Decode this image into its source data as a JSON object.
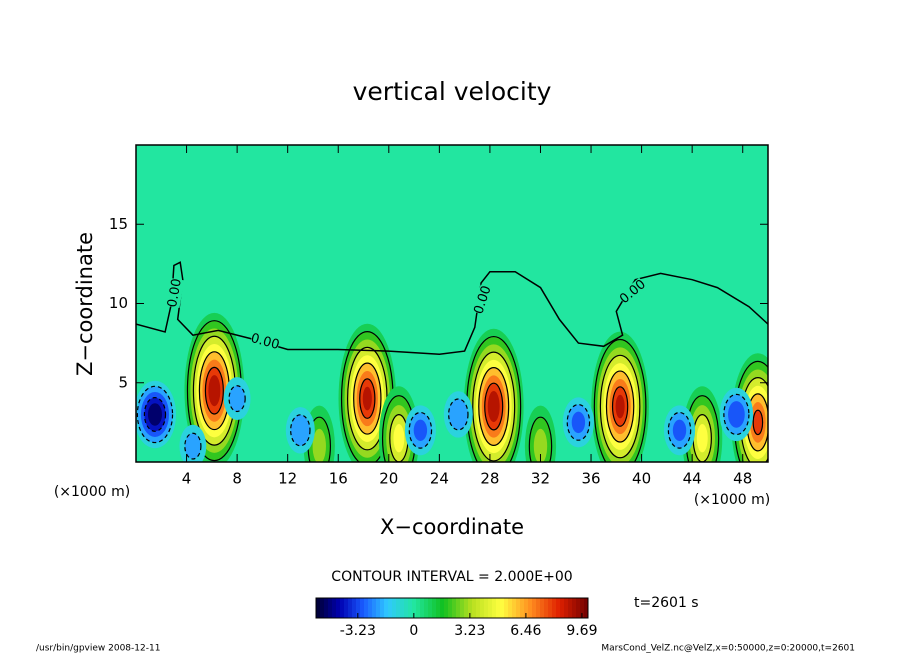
{
  "chart_data": {
    "type": "contour",
    "title": "vertical velocity",
    "x_label": "X−coordinate",
    "y_label": "Z−coordinate",
    "x_unit": "(×1000 m)",
    "xlim": [
      0,
      50
    ],
    "ylim": [
      0,
      20
    ],
    "xticks": [
      4,
      8,
      12,
      16,
      20,
      24,
      28,
      32,
      36,
      40,
      44,
      48
    ],
    "yticks": [
      5,
      10,
      15
    ],
    "background_color": "#22e6a0",
    "zero_contour": {
      "label": "0.00",
      "x": [
        0,
        2.3,
        2.8,
        3.0,
        3.5,
        3.7,
        3.3,
        4.5,
        6.5,
        9,
        12,
        16,
        20,
        24,
        26,
        26.8,
        27.3,
        28,
        30,
        32,
        33.5,
        35,
        37,
        38.5,
        38,
        39.5,
        41.5,
        44,
        46,
        48.5,
        50
      ],
      "y": [
        8.7,
        8.2,
        10,
        12.4,
        12.6,
        11.5,
        9,
        8.0,
        8.3,
        7.8,
        7.1,
        7.1,
        7.0,
        6.8,
        7.0,
        8.5,
        11.3,
        12,
        12,
        11,
        9,
        7.5,
        7.3,
        8,
        9.5,
        11.5,
        11.9,
        11.5,
        11,
        9.8,
        8.7
      ]
    },
    "cells": [
      {
        "x": 6.2,
        "y": 4.5,
        "value": 9.5
      },
      {
        "x": 18.3,
        "y": 4.0,
        "value": 9.0
      },
      {
        "x": 28.3,
        "y": 3.5,
        "value": 9.5
      },
      {
        "x": 38.3,
        "y": 3.5,
        "value": 9.0
      },
      {
        "x": 49.2,
        "y": 2.5,
        "value": 8.0
      },
      {
        "x": 20.8,
        "y": 1.5,
        "value": 5.0
      },
      {
        "x": 44.8,
        "y": 1.5,
        "value": 5.0
      },
      {
        "x": 14.5,
        "y": 1.0,
        "value": 3.0
      },
      {
        "x": 32.0,
        "y": 1.0,
        "value": 3.0
      },
      {
        "x": 1.5,
        "y": 3.0,
        "value": -5.5
      },
      {
        "x": 13.0,
        "y": 2.0,
        "value": -2.5
      },
      {
        "x": 22.5,
        "y": 2.0,
        "value": -3.0
      },
      {
        "x": 25.5,
        "y": 3.0,
        "value": -2.5
      },
      {
        "x": 35.0,
        "y": 2.5,
        "value": -3.0
      },
      {
        "x": 43.0,
        "y": 2.0,
        "value": -3.0
      },
      {
        "x": 47.5,
        "y": 3.0,
        "value": -3.5
      },
      {
        "x": 8.0,
        "y": 4.0,
        "value": -2.0
      },
      {
        "x": 4.5,
        "y": 1.0,
        "value": -2.0
      }
    ],
    "contour_interval": "CONTOUR INTERVAL = 2.000E+00",
    "colorbar": {
      "clim": [
        -5.64,
        10.04
      ],
      "ticks": [
        -3.23,
        0,
        3.23,
        6.46,
        9.69
      ],
      "colors": [
        "#000030",
        "#0000b0",
        "#1a5cff",
        "#30c8ff",
        "#22e6a0",
        "#10c020",
        "#b8e020",
        "#ffff40",
        "#ff9020",
        "#e02000",
        "#700000"
      ]
    },
    "time_label": "t=2601 s",
    "footer_left": "/usr/bin/gpview   2008-12-11",
    "footer_right": "MarsCond_VelZ.nc@VelZ,x=0:50000,z=0:20000,t=2601"
  }
}
